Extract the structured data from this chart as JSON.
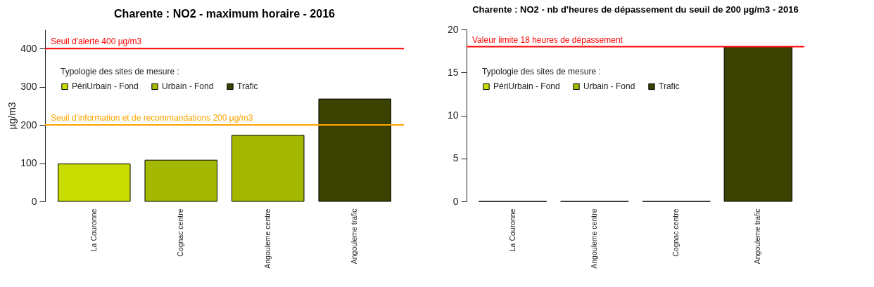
{
  "chart_data": [
    {
      "type": "bar",
      "title": "Charente : NO2 - maximum horaire - 2016",
      "ylabel": "µg/m3",
      "legend_title": "Typologie des sites de mesure :",
      "categories": [
        "La Couronne",
        "Cognac centre",
        "Angouleme centre",
        "Angouleme trafic"
      ],
      "series": [
        {
          "name": "PériUrbain - Fond",
          "color": "#c8dc00",
          "values": [
            98,
            null,
            null,
            null
          ]
        },
        {
          "name": "Urbain - Fond",
          "color": "#a5b800",
          "values": [
            null,
            108,
            173,
            null
          ]
        },
        {
          "name": "Trafic",
          "color": "#3b4100",
          "values": [
            null,
            null,
            null,
            268
          ]
        }
      ],
      "ylim": [
        0,
        450
      ],
      "yticks": [
        0,
        100,
        200,
        300,
        400
      ],
      "grid": false,
      "legend": "top left",
      "ref_lines": [
        {
          "axis": "y",
          "value": 400,
          "label": "Seuil d'alerte 400 µg/m3",
          "color": "#ff0000"
        },
        {
          "axis": "y",
          "value": 200,
          "label": "Seuil d'information et de recommandations 200 µg/m3",
          "color": "#ffa500"
        }
      ]
    },
    {
      "type": "bar",
      "title": "Charente : NO2 - nb d'heures de dépassement du seuil de 200 µg/m3 - 2016",
      "legend_title": "Typologie des sites de mesure :",
      "categories": [
        "La Couronne",
        "Angouleme centre",
        "Cognac centre",
        "Angouleme trafic"
      ],
      "series": [
        {
          "name": "PériUrbain - Fond",
          "color": "#c8dc00",
          "values": [
            0,
            null,
            null,
            null
          ]
        },
        {
          "name": "Urbain - Fond",
          "color": "#a5b800",
          "values": [
            null,
            0,
            0,
            null
          ]
        },
        {
          "name": "Trafic",
          "color": "#3b4100",
          "values": [
            null,
            null,
            null,
            18
          ]
        }
      ],
      "ylim": [
        0,
        20
      ],
      "yticks": [
        0,
        5,
        10,
        15,
        20
      ],
      "grid": false,
      "legend": "top left",
      "ref_lines": [
        {
          "axis": "y",
          "value": 18,
          "label": "Valeur limite 18 heures de dépassement",
          "color": "#ff0000"
        }
      ]
    }
  ]
}
